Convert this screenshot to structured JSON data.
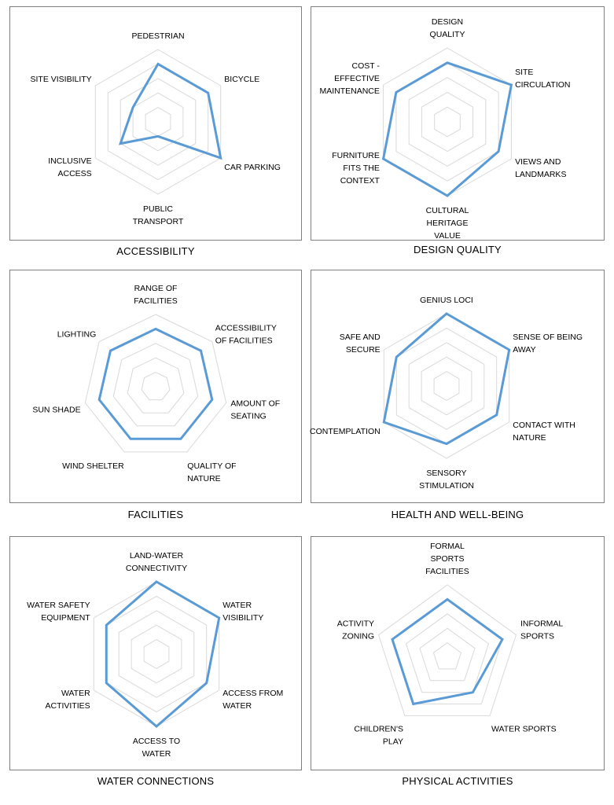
{
  "chart_data": [
    {
      "type": "radar",
      "title": "ACCESSIBILITY",
      "levels": 5,
      "max": 5,
      "series_color": "#5b9bd5",
      "grid_color": "#d9d9d9",
      "categories": [
        [
          "PEDESTRIAN"
        ],
        [
          "BICYCLE"
        ],
        [
          "CAR PARKING"
        ],
        [
          "PUBLIC",
          "TRANSPORT"
        ],
        [
          "INCLUSIVE",
          "ACCESS"
        ],
        [
          "SITE VISIBILITY"
        ]
      ],
      "values": [
        4,
        4,
        5,
        1,
        3,
        2
      ]
    },
    {
      "type": "radar",
      "title": "DESIGN QUALITY",
      "levels": 5,
      "max": 5,
      "series_color": "#5b9bd5",
      "grid_color": "#d9d9d9",
      "categories": [
        [
          "DESIGN",
          "QUALITY"
        ],
        [
          "SITE",
          "CIRCULATION"
        ],
        [
          "VIEWS AND",
          "LANDMARKS"
        ],
        [
          "CULTURAL",
          "HERITAGE",
          "VALUE"
        ],
        [
          "FURNITURE",
          "FITS THE",
          "CONTEXT"
        ],
        [
          "COST -",
          "EFFECTIVE",
          "MAINTENANCE"
        ]
      ],
      "values": [
        4,
        5,
        4,
        5,
        5,
        4
      ]
    },
    {
      "type": "radar",
      "title": "FACILITIES",
      "levels": 5,
      "max": 5,
      "series_color": "#5b9bd5",
      "grid_color": "#d9d9d9",
      "categories": [
        [
          "RANGE OF",
          "FACILITIES"
        ],
        [
          "ACCESSIBILITY",
          "OF FACILITIES"
        ],
        [
          "AMOUNT OF",
          "SEATING"
        ],
        [
          "QUALITY OF",
          "NATURE"
        ],
        [
          "WIND SHELTER"
        ],
        [
          "SUN SHADE"
        ],
        [
          "LIGHTING"
        ]
      ],
      "values": [
        4,
        4,
        4,
        4,
        4,
        4,
        4
      ]
    },
    {
      "type": "radar",
      "title": "HEALTH AND WELL-BEING",
      "levels": 5,
      "max": 5,
      "series_color": "#5b9bd5",
      "grid_color": "#d9d9d9",
      "categories": [
        [
          "GENIUS LOCI"
        ],
        [
          "SENSE OF BEING",
          "AWAY"
        ],
        [
          "CONTACT WITH",
          "NATURE"
        ],
        [
          "SENSORY",
          "STIMULATION"
        ],
        [
          "CONTEMPLATION"
        ],
        [
          "SAFE AND",
          "SECURE"
        ]
      ],
      "values": [
        5,
        5,
        4,
        4,
        5,
        4
      ]
    },
    {
      "type": "radar",
      "title": "WATER CONNECTIONS",
      "levels": 5,
      "max": 5,
      "series_color": "#5b9bd5",
      "grid_color": "#d9d9d9",
      "categories": [
        [
          "LAND-WATER",
          "CONNECTIVITY"
        ],
        [
          "WATER",
          "VISIBILITY"
        ],
        [
          "ACCESS FROM",
          "WATER"
        ],
        [
          "ACCESS TO",
          "WATER"
        ],
        [
          "WATER",
          "ACTIVITIES"
        ],
        [
          "WATER SAFETY",
          "EQUIPMENT"
        ]
      ],
      "values": [
        5,
        5,
        4,
        5,
        4,
        4
      ]
    },
    {
      "type": "radar",
      "title": "PHYSICAL ACTIVITIES",
      "levels": 5,
      "max": 5,
      "series_color": "#5b9bd5",
      "grid_color": "#d9d9d9",
      "categories": [
        [
          "FORMAL",
          "SPORTS",
          "FACILITIES"
        ],
        [
          "INFORMAL",
          "SPORTS"
        ],
        [
          "WATER SPORTS"
        ],
        [
          "CHILDREN'S",
          "PLAY"
        ],
        [
          "ACTIVITY",
          "ZONING"
        ]
      ],
      "values": [
        4,
        4,
        3,
        4,
        4
      ]
    }
  ]
}
